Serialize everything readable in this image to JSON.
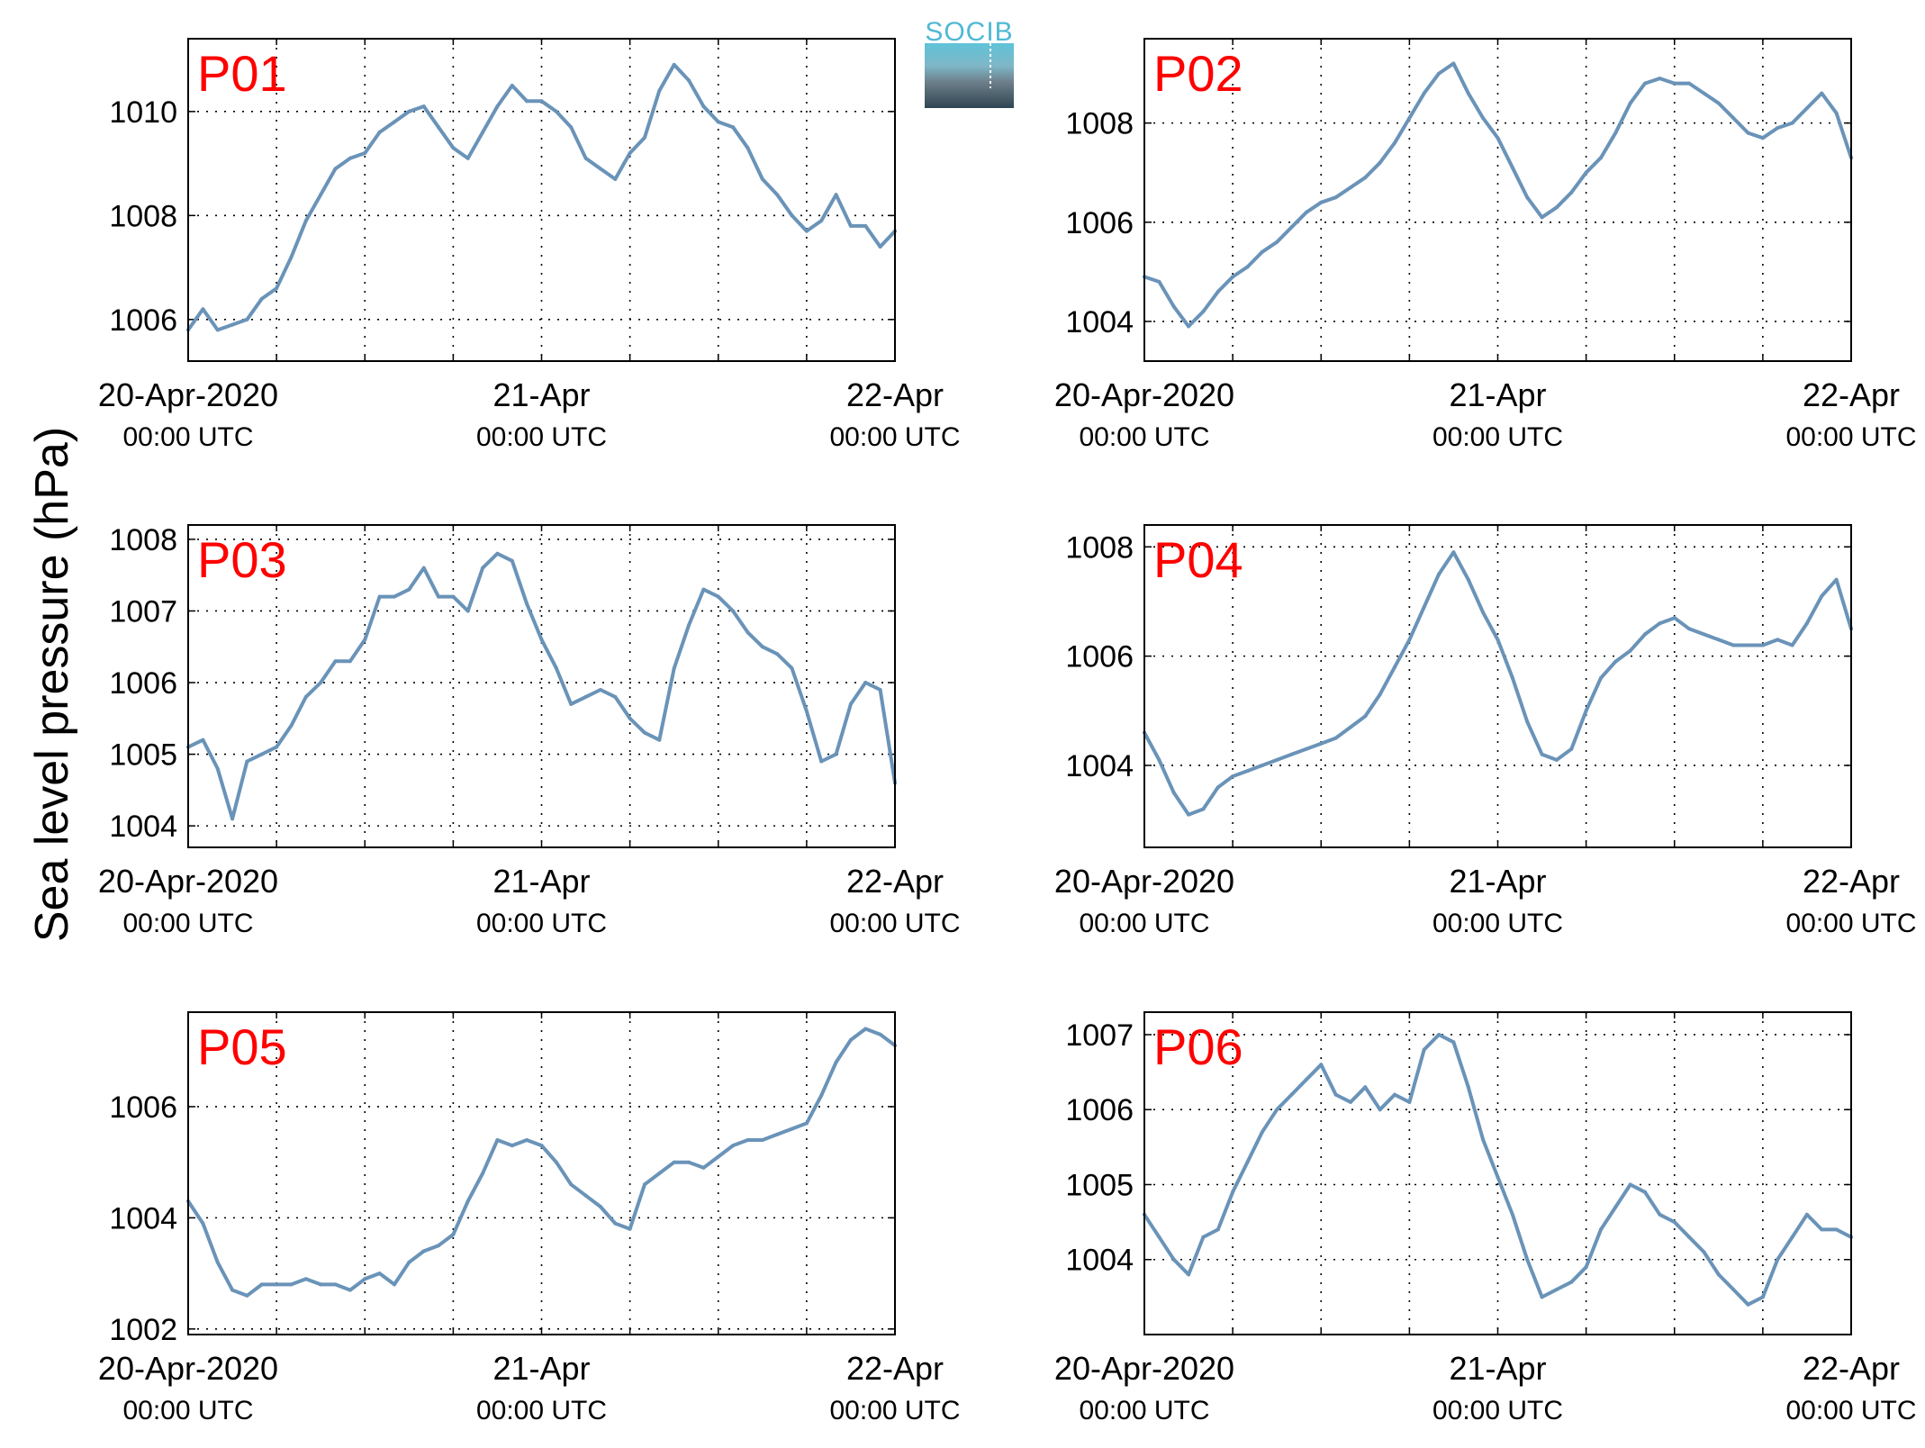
{
  "figure": {
    "ylabel": "Sea level pressure (hPa)",
    "logo_text": "SOCIB",
    "line_color": "#6a93b8",
    "label_color": "#ff0000",
    "grid": "dotted"
  },
  "chart_data": [
    {
      "type": "line",
      "name": "P01",
      "xlim": [
        0,
        48
      ],
      "ylim": [
        1005.2,
        1011.4
      ],
      "xticks": [
        0,
        24,
        48
      ],
      "xticklabels": [
        [
          "20-Apr-2020",
          "00:00 UTC"
        ],
        [
          "21-Apr",
          "00:00 UTC"
        ],
        [
          "22-Apr",
          "00:00 UTC"
        ]
      ],
      "yticks": [
        1006,
        1008,
        1010
      ],
      "x": [
        0,
        1,
        2,
        3,
        4,
        5,
        6,
        7,
        8,
        9,
        10,
        11,
        12,
        13,
        14,
        15,
        16,
        17,
        18,
        19,
        20,
        21,
        22,
        23,
        24,
        25,
        26,
        27,
        28,
        29,
        30,
        31,
        32,
        33,
        34,
        35,
        36,
        37,
        38,
        39,
        40,
        41,
        42,
        43,
        44,
        45,
        46,
        47,
        48
      ],
      "y": [
        1005.8,
        1006.2,
        1005.8,
        1005.9,
        1006.0,
        1006.4,
        1006.6,
        1007.2,
        1007.9,
        1008.4,
        1008.9,
        1009.1,
        1009.2,
        1009.6,
        1009.8,
        1010.0,
        1010.1,
        1009.7,
        1009.3,
        1009.1,
        1009.6,
        1010.1,
        1010.5,
        1010.2,
        1010.2,
        1010.0,
        1009.7,
        1009.1,
        1008.9,
        1008.7,
        1009.2,
        1009.5,
        1010.4,
        1010.9,
        1010.6,
        1010.1,
        1009.8,
        1009.7,
        1009.3,
        1008.7,
        1008.4,
        1008.0,
        1007.7,
        1007.9,
        1008.4,
        1007.8,
        1007.8,
        1007.4,
        1007.7
      ]
    },
    {
      "type": "line",
      "name": "P02",
      "xlim": [
        0,
        48
      ],
      "ylim": [
        1003.2,
        1009.7
      ],
      "xticks": [
        0,
        24,
        48
      ],
      "xticklabels": [
        [
          "20-Apr-2020",
          "00:00 UTC"
        ],
        [
          "21-Apr",
          "00:00 UTC"
        ],
        [
          "22-Apr",
          "00:00 UTC"
        ]
      ],
      "yticks": [
        1004,
        1006,
        1008
      ],
      "x": [
        0,
        1,
        2,
        3,
        4,
        5,
        6,
        7,
        8,
        9,
        10,
        11,
        12,
        13,
        14,
        15,
        16,
        17,
        18,
        19,
        20,
        21,
        22,
        23,
        24,
        25,
        26,
        27,
        28,
        29,
        30,
        31,
        32,
        33,
        34,
        35,
        36,
        37,
        38,
        39,
        40,
        41,
        42,
        43,
        44,
        45,
        46,
        47,
        48
      ],
      "y": [
        1004.9,
        1004.8,
        1004.3,
        1003.9,
        1004.2,
        1004.6,
        1004.9,
        1005.1,
        1005.4,
        1005.6,
        1005.9,
        1006.2,
        1006.4,
        1006.5,
        1006.7,
        1006.9,
        1007.2,
        1007.6,
        1008.1,
        1008.6,
        1009.0,
        1009.2,
        1008.6,
        1008.1,
        1007.7,
        1007.1,
        1006.5,
        1006.1,
        1006.3,
        1006.6,
        1007.0,
        1007.3,
        1007.8,
        1008.4,
        1008.8,
        1008.9,
        1008.8,
        1008.8,
        1008.6,
        1008.4,
        1008.1,
        1007.8,
        1007.7,
        1007.9,
        1008.0,
        1008.3,
        1008.6,
        1008.2,
        1007.3
      ]
    },
    {
      "type": "line",
      "name": "P03",
      "xlim": [
        0,
        48
      ],
      "ylim": [
        1003.7,
        1008.2
      ],
      "xticks": [
        0,
        24,
        48
      ],
      "xticklabels": [
        [
          "20-Apr-2020",
          "00:00 UTC"
        ],
        [
          "21-Apr",
          "00:00 UTC"
        ],
        [
          "22-Apr",
          "00:00 UTC"
        ]
      ],
      "yticks": [
        1004,
        1005,
        1006,
        1007,
        1008
      ],
      "x": [
        0,
        1,
        2,
        3,
        4,
        5,
        6,
        7,
        8,
        9,
        10,
        11,
        12,
        13,
        14,
        15,
        16,
        17,
        18,
        19,
        20,
        21,
        22,
        23,
        24,
        25,
        26,
        27,
        28,
        29,
        30,
        31,
        32,
        33,
        34,
        35,
        36,
        37,
        38,
        39,
        40,
        41,
        42,
        43,
        44,
        45,
        46,
        47,
        48
      ],
      "y": [
        1005.1,
        1005.2,
        1004.8,
        1004.1,
        1004.9,
        1005.0,
        1005.1,
        1005.4,
        1005.8,
        1006.0,
        1006.3,
        1006.3,
        1006.6,
        1007.2,
        1007.2,
        1007.3,
        1007.6,
        1007.2,
        1007.2,
        1007.0,
        1007.6,
        1007.8,
        1007.7,
        1007.1,
        1006.6,
        1006.2,
        1005.7,
        1005.8,
        1005.9,
        1005.8,
        1005.5,
        1005.3,
        1005.2,
        1006.2,
        1006.8,
        1007.3,
        1007.2,
        1007.0,
        1006.7,
        1006.5,
        1006.4,
        1006.2,
        1005.6,
        1004.9,
        1005.0,
        1005.7,
        1006.0,
        1005.9,
        1004.6
      ]
    },
    {
      "type": "line",
      "name": "P04",
      "xlim": [
        0,
        48
      ],
      "ylim": [
        1002.5,
        1008.4
      ],
      "xticks": [
        0,
        24,
        48
      ],
      "xticklabels": [
        [
          "20-Apr-2020",
          "00:00 UTC"
        ],
        [
          "21-Apr",
          "00:00 UTC"
        ],
        [
          "22-Apr",
          "00:00 UTC"
        ]
      ],
      "yticks": [
        1004,
        1006,
        1008
      ],
      "x": [
        0,
        1,
        2,
        3,
        4,
        5,
        6,
        7,
        8,
        9,
        10,
        11,
        12,
        13,
        14,
        15,
        16,
        17,
        18,
        19,
        20,
        21,
        22,
        23,
        24,
        25,
        26,
        27,
        28,
        29,
        30,
        31,
        32,
        33,
        34,
        35,
        36,
        37,
        38,
        39,
        40,
        41,
        42,
        43,
        44,
        45,
        46,
        47,
        48
      ],
      "y": [
        1004.6,
        1004.1,
        1003.5,
        1003.1,
        1003.2,
        1003.6,
        1003.8,
        1003.9,
        1004.0,
        1004.1,
        1004.2,
        1004.3,
        1004.4,
        1004.5,
        1004.7,
        1004.9,
        1005.3,
        1005.8,
        1006.3,
        1006.9,
        1007.5,
        1007.9,
        1007.4,
        1006.8,
        1006.3,
        1005.6,
        1004.8,
        1004.2,
        1004.1,
        1004.3,
        1005.0,
        1005.6,
        1005.9,
        1006.1,
        1006.4,
        1006.6,
        1006.7,
        1006.5,
        1006.4,
        1006.3,
        1006.2,
        1006.2,
        1006.2,
        1006.3,
        1006.2,
        1006.6,
        1007.1,
        1007.4,
        1006.5
      ]
    },
    {
      "type": "line",
      "name": "P05",
      "xlim": [
        0,
        48
      ],
      "ylim": [
        1001.9,
        1007.7
      ],
      "xticks": [
        0,
        24,
        48
      ],
      "xticklabels": [
        [
          "20-Apr-2020",
          "00:00 UTC"
        ],
        [
          "21-Apr",
          "00:00 UTC"
        ],
        [
          "22-Apr",
          "00:00 UTC"
        ]
      ],
      "yticks": [
        1002,
        1004,
        1006
      ],
      "x": [
        0,
        1,
        2,
        3,
        4,
        5,
        6,
        7,
        8,
        9,
        10,
        11,
        12,
        13,
        14,
        15,
        16,
        17,
        18,
        19,
        20,
        21,
        22,
        23,
        24,
        25,
        26,
        27,
        28,
        29,
        30,
        31,
        32,
        33,
        34,
        35,
        36,
        37,
        38,
        39,
        40,
        41,
        42,
        43,
        44,
        45,
        46,
        47,
        48
      ],
      "y": [
        1004.3,
        1003.9,
        1003.2,
        1002.7,
        1002.6,
        1002.8,
        1002.8,
        1002.8,
        1002.9,
        1002.8,
        1002.8,
        1002.7,
        1002.9,
        1003.0,
        1002.8,
        1003.2,
        1003.4,
        1003.5,
        1003.7,
        1004.3,
        1004.8,
        1005.4,
        1005.3,
        1005.4,
        1005.3,
        1005.0,
        1004.6,
        1004.4,
        1004.2,
        1003.9,
        1003.8,
        1004.6,
        1004.8,
        1005.0,
        1005.0,
        1004.9,
        1005.1,
        1005.3,
        1005.4,
        1005.4,
        1005.5,
        1005.6,
        1005.7,
        1006.2,
        1006.8,
        1007.2,
        1007.4,
        1007.3,
        1007.1
      ]
    },
    {
      "type": "line",
      "name": "P06",
      "xlim": [
        0,
        48
      ],
      "ylim": [
        1003.0,
        1007.3
      ],
      "xticks": [
        0,
        24,
        48
      ],
      "xticklabels": [
        [
          "20-Apr-2020",
          "00:00 UTC"
        ],
        [
          "21-Apr",
          "00:00 UTC"
        ],
        [
          "22-Apr",
          "00:00 UTC"
        ]
      ],
      "yticks": [
        1004,
        1005,
        1006,
        1007
      ],
      "x": [
        0,
        1,
        2,
        3,
        4,
        5,
        6,
        7,
        8,
        9,
        10,
        11,
        12,
        13,
        14,
        15,
        16,
        17,
        18,
        19,
        20,
        21,
        22,
        23,
        24,
        25,
        26,
        27,
        28,
        29,
        30,
        31,
        32,
        33,
        34,
        35,
        36,
        37,
        38,
        39,
        40,
        41,
        42,
        43,
        44,
        45,
        46,
        47,
        48
      ],
      "y": [
        1004.6,
        1004.3,
        1004.0,
        1003.8,
        1004.3,
        1004.4,
        1004.9,
        1005.3,
        1005.7,
        1006.0,
        1006.2,
        1006.4,
        1006.6,
        1006.2,
        1006.1,
        1006.3,
        1006.0,
        1006.2,
        1006.1,
        1006.8,
        1007.0,
        1006.9,
        1006.3,
        1005.6,
        1005.1,
        1004.6,
        1004.0,
        1003.5,
        1003.6,
        1003.7,
        1003.9,
        1004.4,
        1004.7,
        1005.0,
        1004.9,
        1004.6,
        1004.5,
        1004.3,
        1004.1,
        1003.8,
        1003.6,
        1003.4,
        1003.5,
        1004.0,
        1004.3,
        1004.6,
        1004.4,
        1004.4,
        1004.3
      ]
    }
  ]
}
